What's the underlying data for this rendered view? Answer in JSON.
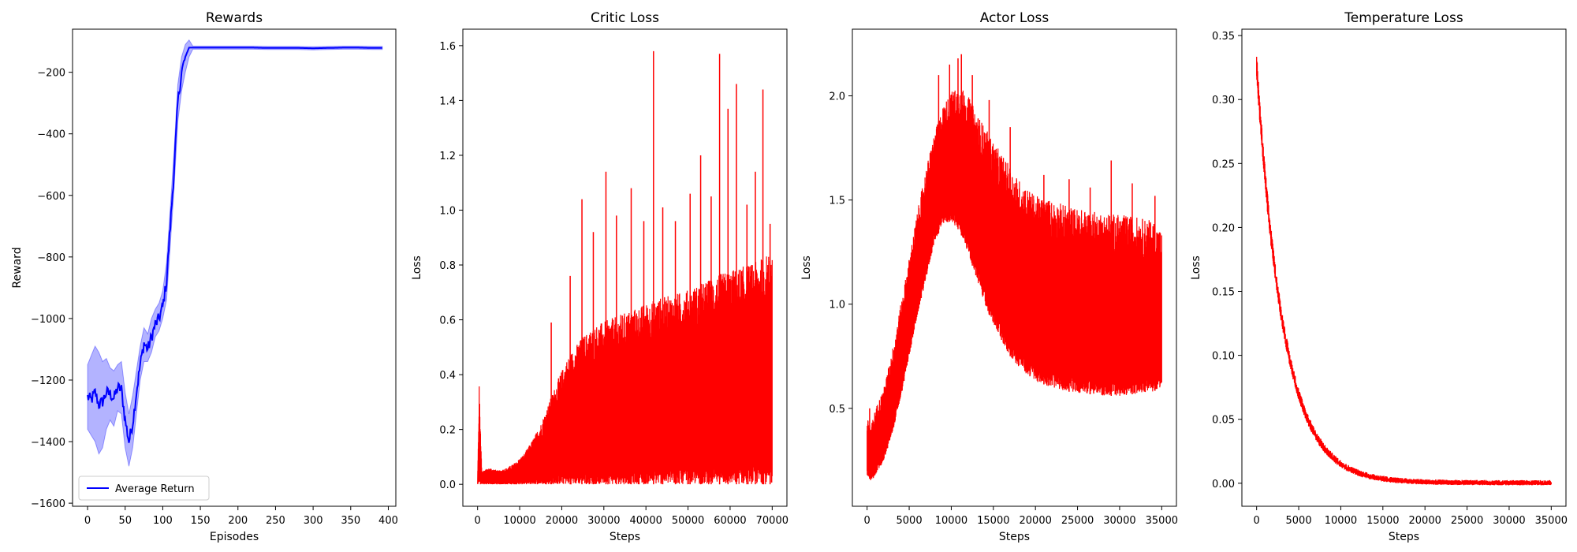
{
  "chart_data": [
    {
      "type": "line",
      "title": "Rewards",
      "xlabel": "Episodes",
      "ylabel": "Reward",
      "xlim": [
        -20,
        410
      ],
      "ylim": [
        -1610,
        -60
      ],
      "xticks": [
        0,
        50,
        100,
        150,
        200,
        250,
        300,
        350,
        400
      ],
      "yticks": [
        -1600,
        -1400,
        -1200,
        -1000,
        -800,
        -600,
        -400,
        -200
      ],
      "legend": "lower-left",
      "series": [
        {
          "name": "Average Return",
          "color": "#0000ff",
          "band_color": "#8080ff",
          "x": [
            0,
            5,
            10,
            15,
            20,
            25,
            30,
            35,
            40,
            45,
            50,
            55,
            60,
            65,
            70,
            75,
            80,
            85,
            90,
            95,
            100,
            105,
            110,
            115,
            120,
            125,
            130,
            135,
            140,
            160,
            180,
            200,
            220,
            240,
            260,
            280,
            300,
            320,
            340,
            360,
            380,
            392
          ],
          "y": [
            -1255,
            -1265,
            -1240,
            -1280,
            -1270,
            -1240,
            -1245,
            -1260,
            -1225,
            -1230,
            -1330,
            -1400,
            -1340,
            -1240,
            -1150,
            -1080,
            -1100,
            -1060,
            -1020,
            -1000,
            -960,
            -880,
            -700,
            -520,
            -300,
            -200,
            -150,
            -120,
            -120,
            -120,
            -120,
            -120,
            -120,
            -121,
            -121,
            -121,
            -122,
            -121,
            -120,
            -120,
            -121,
            -121
          ],
          "lower": [
            -1360,
            -1380,
            -1400,
            -1440,
            -1420,
            -1360,
            -1330,
            -1350,
            -1300,
            -1310,
            -1420,
            -1480,
            -1420,
            -1310,
            -1200,
            -1140,
            -1140,
            -1110,
            -1060,
            -1040,
            -1000,
            -940,
            -760,
            -580,
            -360,
            -260,
            -200,
            -150,
            -125,
            -125,
            -125,
            -125,
            -125,
            -126,
            -126,
            -126,
            -127,
            -126,
            -125,
            -125,
            -126,
            -126
          ],
          "upper": [
            -1150,
            -1120,
            -1090,
            -1110,
            -1140,
            -1130,
            -1160,
            -1170,
            -1150,
            -1140,
            -1240,
            -1310,
            -1250,
            -1170,
            -1090,
            -1030,
            -1050,
            -1000,
            -970,
            -950,
            -910,
            -820,
            -640,
            -460,
            -240,
            -150,
            -110,
            -95,
            -115,
            -115,
            -115,
            -115,
            -115,
            -116,
            -116,
            -116,
            -117,
            -116,
            -115,
            -115,
            -116,
            -116
          ]
        }
      ]
    },
    {
      "type": "line",
      "title": "Critic Loss",
      "xlabel": "Steps",
      "ylabel": "Loss",
      "xlim": [
        -3500,
        73500
      ],
      "ylim": [
        -0.08,
        1.66
      ],
      "xticks": [
        0,
        10000,
        20000,
        30000,
        40000,
        50000,
        60000,
        70000
      ],
      "yticks": [
        0.0,
        0.2,
        0.4,
        0.6,
        0.8,
        1.0,
        1.2,
        1.4,
        1.6
      ],
      "series": [
        {
          "color": "#ff0000",
          "envelope_x": [
            0,
            400,
            1000,
            3000,
            5000,
            7000,
            9000,
            11000,
            13000,
            15000,
            17000,
            19000,
            21000,
            23000,
            25000,
            28000,
            31000,
            34000,
            37000,
            40000,
            43000,
            46000,
            50000,
            54000,
            58000,
            62000,
            66000,
            70000
          ],
          "envelope_upper": [
            0.01,
            0.36,
            0.05,
            0.06,
            0.05,
            0.06,
            0.08,
            0.11,
            0.16,
            0.22,
            0.3,
            0.38,
            0.45,
            0.5,
            0.54,
            0.58,
            0.6,
            0.62,
            0.64,
            0.66,
            0.68,
            0.69,
            0.71,
            0.74,
            0.77,
            0.79,
            0.81,
            0.85
          ],
          "spikes": [
            [
              17500,
              0.59
            ],
            [
              22000,
              0.76
            ],
            [
              24800,
              1.04
            ],
            [
              27500,
              0.92
            ],
            [
              30500,
              1.14
            ],
            [
              33000,
              0.98
            ],
            [
              36500,
              1.08
            ],
            [
              39500,
              0.96
            ],
            [
              41800,
              1.58
            ],
            [
              44000,
              1.01
            ],
            [
              47000,
              0.96
            ],
            [
              50500,
              1.06
            ],
            [
              53000,
              1.2
            ],
            [
              55500,
              1.05
            ],
            [
              57500,
              1.57
            ],
            [
              59500,
              1.37
            ],
            [
              61500,
              1.46
            ],
            [
              64000,
              1.02
            ],
            [
              66000,
              1.14
            ],
            [
              67800,
              1.44
            ],
            [
              69500,
              0.95
            ]
          ]
        }
      ]
    },
    {
      "type": "line",
      "title": "Actor Loss",
      "xlabel": "Steps",
      "ylabel": "Loss",
      "xlim": [
        -1750,
        36750
      ],
      "ylim": [
        0.03,
        2.32
      ],
      "xticks": [
        0,
        5000,
        10000,
        15000,
        20000,
        25000,
        30000,
        35000
      ],
      "yticks": [
        0.5,
        1.0,
        1.5,
        2.0
      ],
      "series": [
        {
          "color": "#ff0000",
          "envelope_x": [
            0,
            500,
            1000,
            2000,
            3000,
            4000,
            5000,
            6000,
            7000,
            8000,
            9000,
            10000,
            11000,
            12000,
            13000,
            14000,
            15000,
            16000,
            17000,
            18000,
            19000,
            20000,
            22000,
            24000,
            26000,
            28000,
            30000,
            32000,
            34000,
            35000
          ],
          "envelope_upper": [
            0.45,
            0.42,
            0.5,
            0.6,
            0.78,
            1.0,
            1.22,
            1.45,
            1.65,
            1.82,
            1.95,
            2.02,
            2.05,
            2.0,
            1.92,
            1.85,
            1.78,
            1.72,
            1.66,
            1.6,
            1.56,
            1.52,
            1.5,
            1.47,
            1.45,
            1.44,
            1.43,
            1.42,
            1.4,
            1.35
          ],
          "envelope_lower": [
            0.18,
            0.15,
            0.18,
            0.25,
            0.38,
            0.55,
            0.75,
            0.95,
            1.12,
            1.3,
            1.38,
            1.4,
            1.35,
            1.25,
            1.12,
            1.0,
            0.9,
            0.82,
            0.75,
            0.7,
            0.66,
            0.63,
            0.6,
            0.58,
            0.57,
            0.56,
            0.56,
            0.57,
            0.58,
            0.6
          ],
          "spikes": [
            [
              300,
              0.5
            ],
            [
              8500,
              2.1
            ],
            [
              9800,
              2.15
            ],
            [
              10800,
              2.18
            ],
            [
              11200,
              2.2
            ],
            [
              12500,
              2.1
            ],
            [
              14500,
              1.98
            ],
            [
              17000,
              1.85
            ],
            [
              21000,
              1.62
            ],
            [
              24000,
              1.6
            ],
            [
              26500,
              1.56
            ],
            [
              29000,
              1.69
            ],
            [
              31500,
              1.58
            ],
            [
              34200,
              1.52
            ]
          ]
        }
      ]
    },
    {
      "type": "line",
      "title": "Temperature Loss",
      "xlabel": "Steps",
      "ylabel": "Loss",
      "xlim": [
        -1750,
        36750
      ],
      "ylim": [
        -0.018,
        0.355
      ],
      "xticks": [
        0,
        5000,
        10000,
        15000,
        20000,
        25000,
        30000,
        35000
      ],
      "yticks": [
        0.0,
        0.05,
        0.1,
        0.15,
        0.2,
        0.25,
        0.3,
        0.35
      ],
      "series": [
        {
          "color": "#ff0000",
          "decay": {
            "start": 0.325,
            "rate_per_step": 0.00031,
            "noise_top": 0.02,
            "noise_bottom": 0.004
          },
          "x_range": [
            0,
            35000
          ]
        }
      ]
    }
  ]
}
